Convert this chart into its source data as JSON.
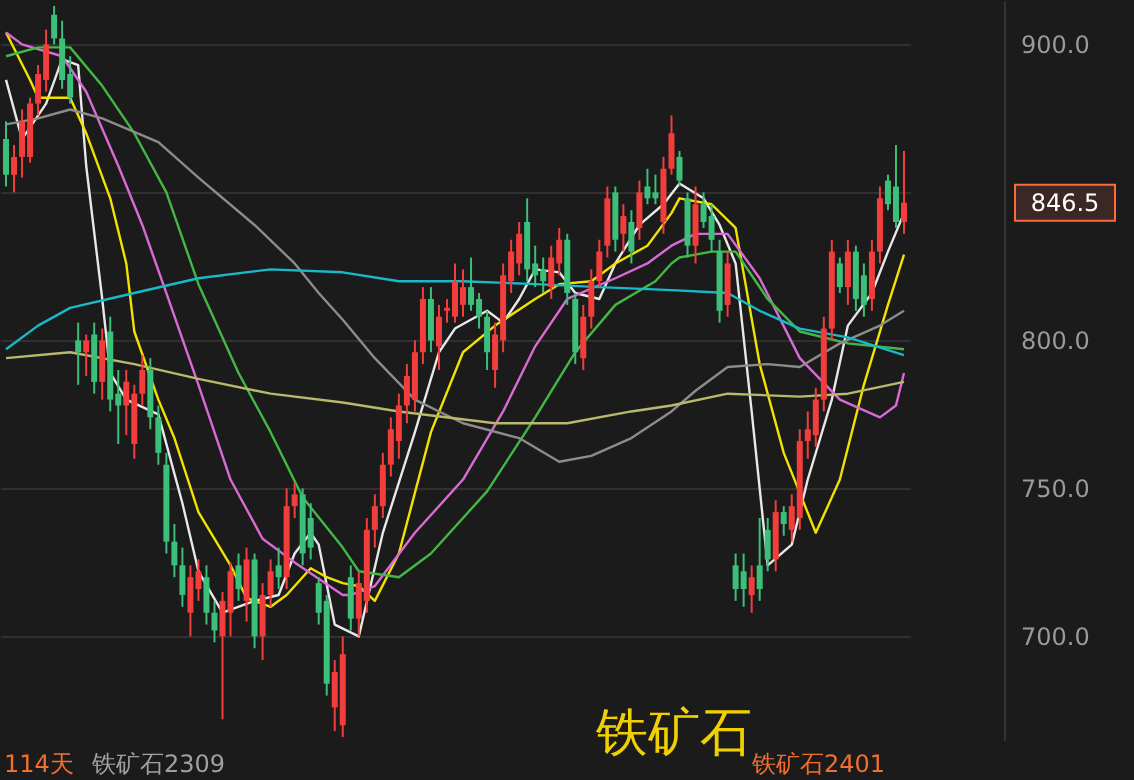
{
  "chart_data": {
    "type": "candlestick",
    "title": "铁矿石",
    "annotations": [
      "114天",
      "铁矿石2309",
      "铁矿石2401"
    ],
    "categories": [
      null,
      null,
      null,
      null,
      null,
      null,
      null,
      null,
      null,
      null,
      null,
      null,
      null,
      null,
      null,
      null,
      null,
      null,
      null,
      null,
      null,
      null,
      null,
      null,
      null,
      null,
      null,
      null,
      null,
      null,
      null,
      null,
      null,
      null,
      null,
      null,
      null,
      null,
      null,
      null,
      null,
      null,
      null,
      null,
      null,
      null,
      null,
      null,
      null,
      null,
      null,
      null,
      null,
      null,
      null,
      null,
      null,
      null,
      null,
      null,
      null,
      null,
      null,
      null,
      null,
      null,
      null,
      null,
      null,
      null,
      null,
      null,
      null,
      null,
      null,
      null,
      null,
      null,
      null,
      null,
      null,
      null,
      null,
      null,
      null,
      null,
      null,
      null,
      null,
      null,
      null,
      null,
      null,
      null,
      null,
      null,
      null,
      null,
      null,
      null,
      null,
      null,
      null,
      null,
      null,
      null,
      null,
      null,
      null,
      null,
      null,
      null,
      null
    ],
    "ohlc": [
      [
        868,
        874,
        852,
        856
      ],
      [
        856,
        866,
        850,
        862
      ],
      [
        862,
        878,
        855,
        874
      ],
      [
        862,
        882,
        860,
        880
      ],
      [
        880,
        893,
        876,
        890
      ],
      [
        888,
        905,
        884,
        900
      ],
      [
        910,
        913,
        900,
        902
      ],
      [
        902,
        908,
        885,
        888
      ],
      [
        890,
        896,
        880,
        882
      ],
      [
        800,
        806,
        785,
        796
      ],
      [
        796,
        802,
        788,
        800
      ],
      [
        802,
        806,
        782,
        786
      ],
      [
        786,
        804,
        780,
        800
      ],
      [
        803,
        808,
        776,
        780
      ],
      [
        782,
        790,
        765,
        778
      ],
      [
        778,
        790,
        768,
        786
      ],
      [
        765,
        785,
        760,
        782
      ],
      [
        782,
        795,
        778,
        790
      ],
      [
        790,
        794,
        770,
        774
      ],
      [
        774,
        778,
        758,
        762
      ],
      [
        758,
        762,
        728,
        732
      ],
      [
        732,
        738,
        720,
        724
      ],
      [
        724,
        730,
        710,
        714
      ],
      [
        708,
        724,
        700,
        720
      ],
      [
        716,
        726,
        712,
        722
      ],
      [
        720,
        724,
        704,
        708
      ],
      [
        708,
        712,
        698,
        702
      ],
      [
        700,
        715,
        672,
        712
      ],
      [
        708,
        725,
        700,
        722
      ],
      [
        724,
        728,
        712,
        716
      ],
      [
        712,
        730,
        705,
        726
      ],
      [
        726,
        728,
        696,
        700
      ],
      [
        700,
        718,
        692,
        714
      ],
      [
        714,
        726,
        710,
        722
      ],
      [
        724,
        730,
        716,
        720
      ],
      [
        720,
        750,
        716,
        744
      ],
      [
        744,
        752,
        740,
        748
      ],
      [
        748,
        750,
        724,
        728
      ],
      [
        740,
        745,
        726,
        730
      ],
      [
        718,
        720,
        704,
        708
      ],
      [
        712,
        714,
        680,
        684
      ],
      [
        676,
        692,
        668,
        688
      ],
      [
        670,
        700,
        666,
        694
      ],
      [
        720,
        724,
        702,
        706
      ],
      [
        706,
        722,
        700,
        718
      ],
      [
        712,
        740,
        708,
        736
      ],
      [
        736,
        748,
        730,
        744
      ],
      [
        744,
        762,
        740,
        758
      ],
      [
        758,
        774,
        754,
        770
      ],
      [
        766,
        782,
        760,
        778
      ],
      [
        778,
        792,
        772,
        788
      ],
      [
        780,
        800,
        776,
        796
      ],
      [
        796,
        818,
        792,
        814
      ],
      [
        814,
        818,
        796,
        800
      ],
      [
        798,
        812,
        790,
        808
      ],
      [
        810,
        814,
        806,
        811
      ],
      [
        808,
        826,
        806,
        820
      ],
      [
        812,
        824,
        808,
        818
      ],
      [
        818,
        828,
        810,
        812
      ],
      [
        814,
        816,
        804,
        808
      ],
      [
        808,
        810,
        790,
        796
      ],
      [
        790,
        806,
        784,
        802
      ],
      [
        800,
        826,
        796,
        822
      ],
      [
        820,
        834,
        816,
        830
      ],
      [
        826,
        840,
        822,
        836
      ],
      [
        840,
        848,
        820,
        824
      ],
      [
        826,
        832,
        818,
        822
      ],
      [
        824,
        828,
        816,
        820
      ],
      [
        818,
        832,
        814,
        828
      ],
      [
        826,
        838,
        822,
        834
      ],
      [
        834,
        836,
        812,
        816
      ],
      [
        814,
        816,
        792,
        796
      ],
      [
        794,
        812,
        790,
        808
      ],
      [
        808,
        824,
        804,
        820
      ],
      [
        820,
        834,
        818,
        830
      ],
      [
        832,
        852,
        828,
        848
      ],
      [
        850,
        852,
        830,
        834
      ],
      [
        836,
        846,
        830,
        842
      ],
      [
        840,
        844,
        826,
        830
      ],
      [
        838,
        854,
        834,
        850
      ],
      [
        852,
        858,
        846,
        848
      ],
      [
        850,
        856,
        846,
        848
      ],
      [
        840,
        862,
        836,
        858
      ],
      [
        858,
        876,
        856,
        870
      ],
      [
        862,
        864,
        852,
        854
      ],
      [
        848,
        850,
        828,
        832
      ],
      [
        832,
        852,
        826,
        846
      ],
      [
        846,
        850,
        838,
        840
      ],
      [
        842,
        846,
        830,
        834
      ],
      [
        830,
        834,
        806,
        810
      ],
      [
        812,
        830,
        808,
        826
      ],
      [
        724,
        728,
        712,
        716
      ],
      [
        722,
        728,
        710,
        716
      ],
      [
        714,
        724,
        708,
        720
      ],
      [
        724,
        740,
        712,
        716
      ],
      [
        736,
        740,
        722,
        726
      ],
      [
        726,
        746,
        722,
        742
      ],
      [
        742,
        744,
        734,
        738
      ],
      [
        736,
        748,
        732,
        744
      ],
      [
        740,
        770,
        736,
        766
      ],
      [
        766,
        776,
        760,
        770
      ],
      [
        768,
        784,
        764,
        780
      ],
      [
        780,
        808,
        776,
        804
      ],
      [
        804,
        834,
        800,
        830
      ],
      [
        826,
        828,
        816,
        818
      ],
      [
        818,
        834,
        812,
        830
      ],
      [
        830,
        832,
        810,
        814
      ],
      [
        822,
        826,
        808,
        812
      ],
      [
        814,
        834,
        810,
        830
      ],
      [
        830,
        852,
        826,
        848
      ],
      [
        854,
        856,
        844,
        846
      ],
      [
        852,
        866,
        838,
        840
      ],
      [
        840,
        864,
        836,
        846.5
      ]
    ],
    "series": [
      {
        "type": "line",
        "color": "#e8e8e8",
        "values": [
          888,
          null,
          868,
          null,
          null,
          880,
          null,
          895,
          null,
          893,
          859,
          null,
          814,
          789,
          null,
          780,
          null,
          null,
          null,
          775,
          null,
          null,
          745,
          null,
          722,
          null,
          null,
          708,
          null,
          null,
          null,
          712,
          null,
          null,
          714,
          null,
          728,
          null,
          735,
          731,
          null,
          704,
          null,
          null,
          700,
          null,
          null,
          735,
          null,
          null,
          null,
          769,
          null,
          null,
          796,
          null,
          804,
          null,
          null,
          null,
          810,
          null,
          806,
          null,
          814,
          null,
          824,
          null,
          null,
          823,
          null,
          816,
          null,
          null,
          814,
          null,
          826,
          null,
          null,
          839,
          null,
          null,
          846,
          null,
          853,
          null,
          null,
          848,
          null,
          839,
          null,
          826,
          null,
          776,
          null,
          724,
          null,
          null,
          731,
          null,
          753,
          null,
          null,
          780,
          null,
          805,
          null,
          null,
          816,
          null,
          830,
          null,
          843
        ]
      },
      {
        "type": "line",
        "color": "#f2e200",
        "values": [
          904,
          null,
          null,
          888,
          882,
          null,
          null,
          null,
          882,
          null,
          870,
          null,
          null,
          848,
          null,
          826,
          803,
          null,
          null,
          780,
          null,
          767,
          null,
          null,
          742,
          null,
          null,
          null,
          724,
          null,
          713,
          null,
          null,
          710,
          null,
          714,
          null,
          null,
          723,
          null,
          720,
          null,
          718,
          null,
          717,
          null,
          712,
          null,
          null,
          728,
          null,
          null,
          null,
          769,
          null,
          null,
          null,
          796,
          null,
          null,
          null,
          805,
          null,
          null,
          null,
          null,
          814,
          null,
          null,
          819,
          null,
          null,
          null,
          820,
          null,
          null,
          826,
          null,
          null,
          null,
          832,
          null,
          null,
          843,
          848,
          null,
          null,
          null,
          846,
          null,
          null,
          838,
          null,
          null,
          792,
          null,
          null,
          762,
          null,
          null,
          null,
          735,
          null,
          null,
          753,
          null,
          null,
          785,
          null,
          null,
          812,
          null,
          829
        ]
      },
      {
        "type": "line",
        "color": "#d96ad6",
        "values": [
          904,
          null,
          900,
          null,
          null,
          null,
          null,
          896,
          null,
          null,
          884,
          null,
          null,
          null,
          859,
          null,
          null,
          839,
          null,
          null,
          816,
          null,
          null,
          null,
          785,
          null,
          null,
          null,
          753,
          null,
          null,
          null,
          733,
          null,
          null,
          null,
          725,
          null,
          null,
          null,
          null,
          null,
          714,
          714,
          null,
          null,
          717,
          null,
          null,
          null,
          null,
          735,
          null,
          null,
          null,
          null,
          null,
          753,
          null,
          null,
          null,
          null,
          776,
          null,
          null,
          null,
          798,
          null,
          null,
          null,
          814,
          null,
          null,
          null,
          null,
          null,
          821,
          null,
          null,
          null,
          826,
          null,
          null,
          832,
          null,
          null,
          836,
          null,
          null,
          null,
          836,
          null,
          null,
          null,
          821,
          null,
          null,
          null,
          null,
          794,
          null,
          null,
          null,
          null,
          780,
          null,
          null,
          null,
          null,
          774,
          null,
          778,
          789
        ]
      },
      {
        "type": "line",
        "color": "#44b844",
        "values": [
          896,
          null,
          null,
          null,
          899,
          null,
          null,
          null,
          899,
          null,
          null,
          null,
          886,
          null,
          null,
          null,
          870,
          null,
          null,
          null,
          850,
          null,
          null,
          null,
          819,
          null,
          null,
          null,
          null,
          789,
          null,
          null,
          null,
          769,
          null,
          null,
          null,
          747,
          null,
          null,
          null,
          null,
          730,
          null,
          722,
          null,
          null,
          null,
          null,
          720,
          null,
          null,
          null,
          728,
          null,
          null,
          null,
          null,
          null,
          null,
          749,
          null,
          null,
          null,
          null,
          null,
          774,
          null,
          null,
          null,
          null,
          796,
          null,
          null,
          null,
          null,
          812,
          null,
          null,
          null,
          null,
          820,
          null,
          826,
          828,
          null,
          null,
          null,
          830,
          null,
          null,
          830,
          null,
          null,
          null,
          814,
          null,
          null,
          null,
          803,
          null,
          null,
          null,
          null,
          null,
          799,
          null,
          null,
          null,
          null,
          null,
          null,
          797
        ]
      },
      {
        "type": "line",
        "color": "#8c8c8c",
        "values": [
          873,
          null,
          null,
          null,
          875,
          null,
          null,
          null,
          878,
          null,
          null,
          null,
          875,
          null,
          null,
          null,
          null,
          null,
          null,
          867,
          null,
          null,
          null,
          null,
          855,
          null,
          null,
          null,
          null,
          null,
          null,
          839,
          null,
          null,
          null,
          null,
          826,
          null,
          null,
          816,
          null,
          null,
          807,
          null,
          null,
          null,
          794,
          null,
          null,
          null,
          null,
          780,
          null,
          null,
          null,
          null,
          null,
          772,
          null,
          null,
          null,
          null,
          null,
          null,
          767,
          null,
          null,
          null,
          null,
          759,
          null,
          null,
          null,
          761,
          null,
          null,
          null,
          null,
          767,
          null,
          null,
          null,
          null,
          776,
          null,
          null,
          783,
          null,
          null,
          null,
          791,
          null,
          null,
          null,
          null,
          792,
          null,
          null,
          null,
          791,
          null,
          null,
          null,
          null,
          799,
          null,
          null,
          null,
          null,
          805,
          null,
          null,
          810
        ]
      },
      {
        "type": "line",
        "color": "#18b9c9",
        "values": [
          797,
          null,
          null,
          null,
          805,
          null,
          null,
          null,
          811,
          null,
          null,
          null,
          null,
          null,
          null,
          null,
          816,
          null,
          null,
          null,
          null,
          null,
          null,
          null,
          821,
          null,
          null,
          null,
          null,
          null,
          null,
          null,
          null,
          824,
          null,
          null,
          null,
          null,
          null,
          null,
          null,
          null,
          823,
          null,
          null,
          null,
          null,
          null,
          null,
          820,
          null,
          null,
          null,
          null,
          null,
          null,
          null,
          820,
          null,
          null,
          null,
          null,
          null,
          null,
          null,
          null,
          819,
          null,
          null,
          null,
          null,
          null,
          null,
          null,
          818,
          null,
          null,
          null,
          null,
          null,
          null,
          null,
          null,
          817,
          null,
          null,
          null,
          null,
          null,
          null,
          816,
          null,
          null,
          null,
          810,
          null,
          null,
          null,
          null,
          804,
          null,
          null,
          null,
          null,
          null,
          801,
          null,
          null,
          null,
          null,
          null,
          null,
          795
        ]
      },
      {
        "type": "line",
        "color": "#b9b96c",
        "values": [
          794,
          null,
          null,
          null,
          null,
          null,
          null,
          null,
          796,
          null,
          null,
          null,
          null,
          null,
          null,
          null,
          792,
          null,
          null,
          null,
          null,
          null,
          null,
          null,
          787,
          null,
          null,
          null,
          null,
          null,
          null,
          null,
          null,
          782,
          null,
          null,
          null,
          null,
          null,
          null,
          null,
          null,
          779,
          null,
          null,
          null,
          null,
          null,
          null,
          776,
          null,
          null,
          null,
          null,
          null,
          null,
          null,
          null,
          null,
          null,
          null,
          772,
          null,
          null,
          null,
          null,
          null,
          null,
          null,
          null,
          772,
          null,
          null,
          null,
          null,
          null,
          null,
          null,
          776,
          null,
          null,
          null,
          null,
          778,
          null,
          null,
          null,
          null,
          null,
          null,
          782,
          null,
          null,
          null,
          null,
          null,
          null,
          null,
          null,
          781,
          null,
          null,
          null,
          null,
          null,
          782,
          null,
          null,
          null,
          null,
          null,
          null,
          786
        ]
      }
    ],
    "ylim": [
      665,
      915
    ],
    "yticks": [
      {
        "value": 700,
        "label": "700.0"
      },
      {
        "value": 750,
        "label": "750.0"
      },
      {
        "value": 800,
        "label": "800.0"
      },
      {
        "value": 850,
        "label": null
      },
      {
        "value": 900,
        "label": "900.0"
      }
    ],
    "ref_lines": [
      {
        "axis": "y",
        "value": 846.5,
        "label": "846.5",
        "color": "#ff6a3a"
      }
    ],
    "grid": "y",
    "tick_labels": "y"
  }
}
